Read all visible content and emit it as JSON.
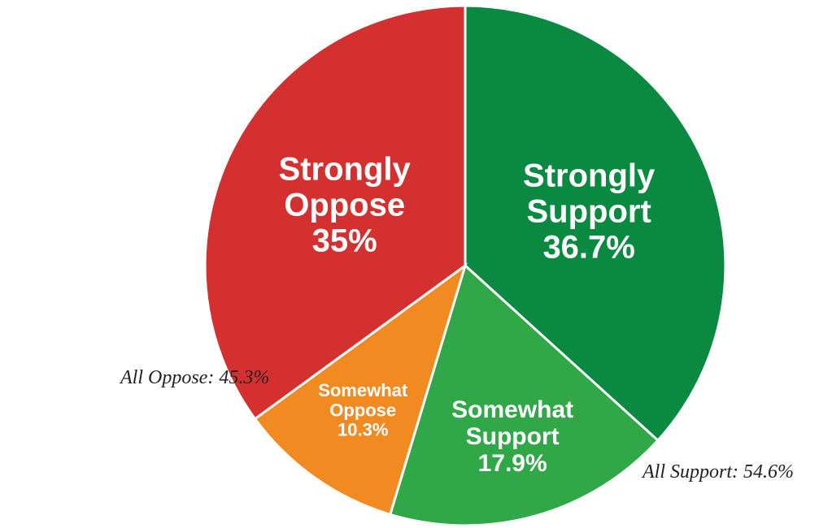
{
  "chart_data": {
    "type": "pie",
    "categories": [
      "Strongly Support",
      "Somewhat Support",
      "Somewhat Oppose",
      "Strongly Oppose"
    ],
    "values": [
      36.7,
      17.9,
      10.3,
      35
    ],
    "value_labels": [
      "36.7%",
      "17.9%",
      "10.3%",
      "35%"
    ],
    "colors": [
      "#0a8a40",
      "#30a848",
      "#f28a22",
      "#d4302f"
    ],
    "annotations": [
      "All Oppose: 45.3%",
      "All Support: 54.6%"
    ]
  }
}
